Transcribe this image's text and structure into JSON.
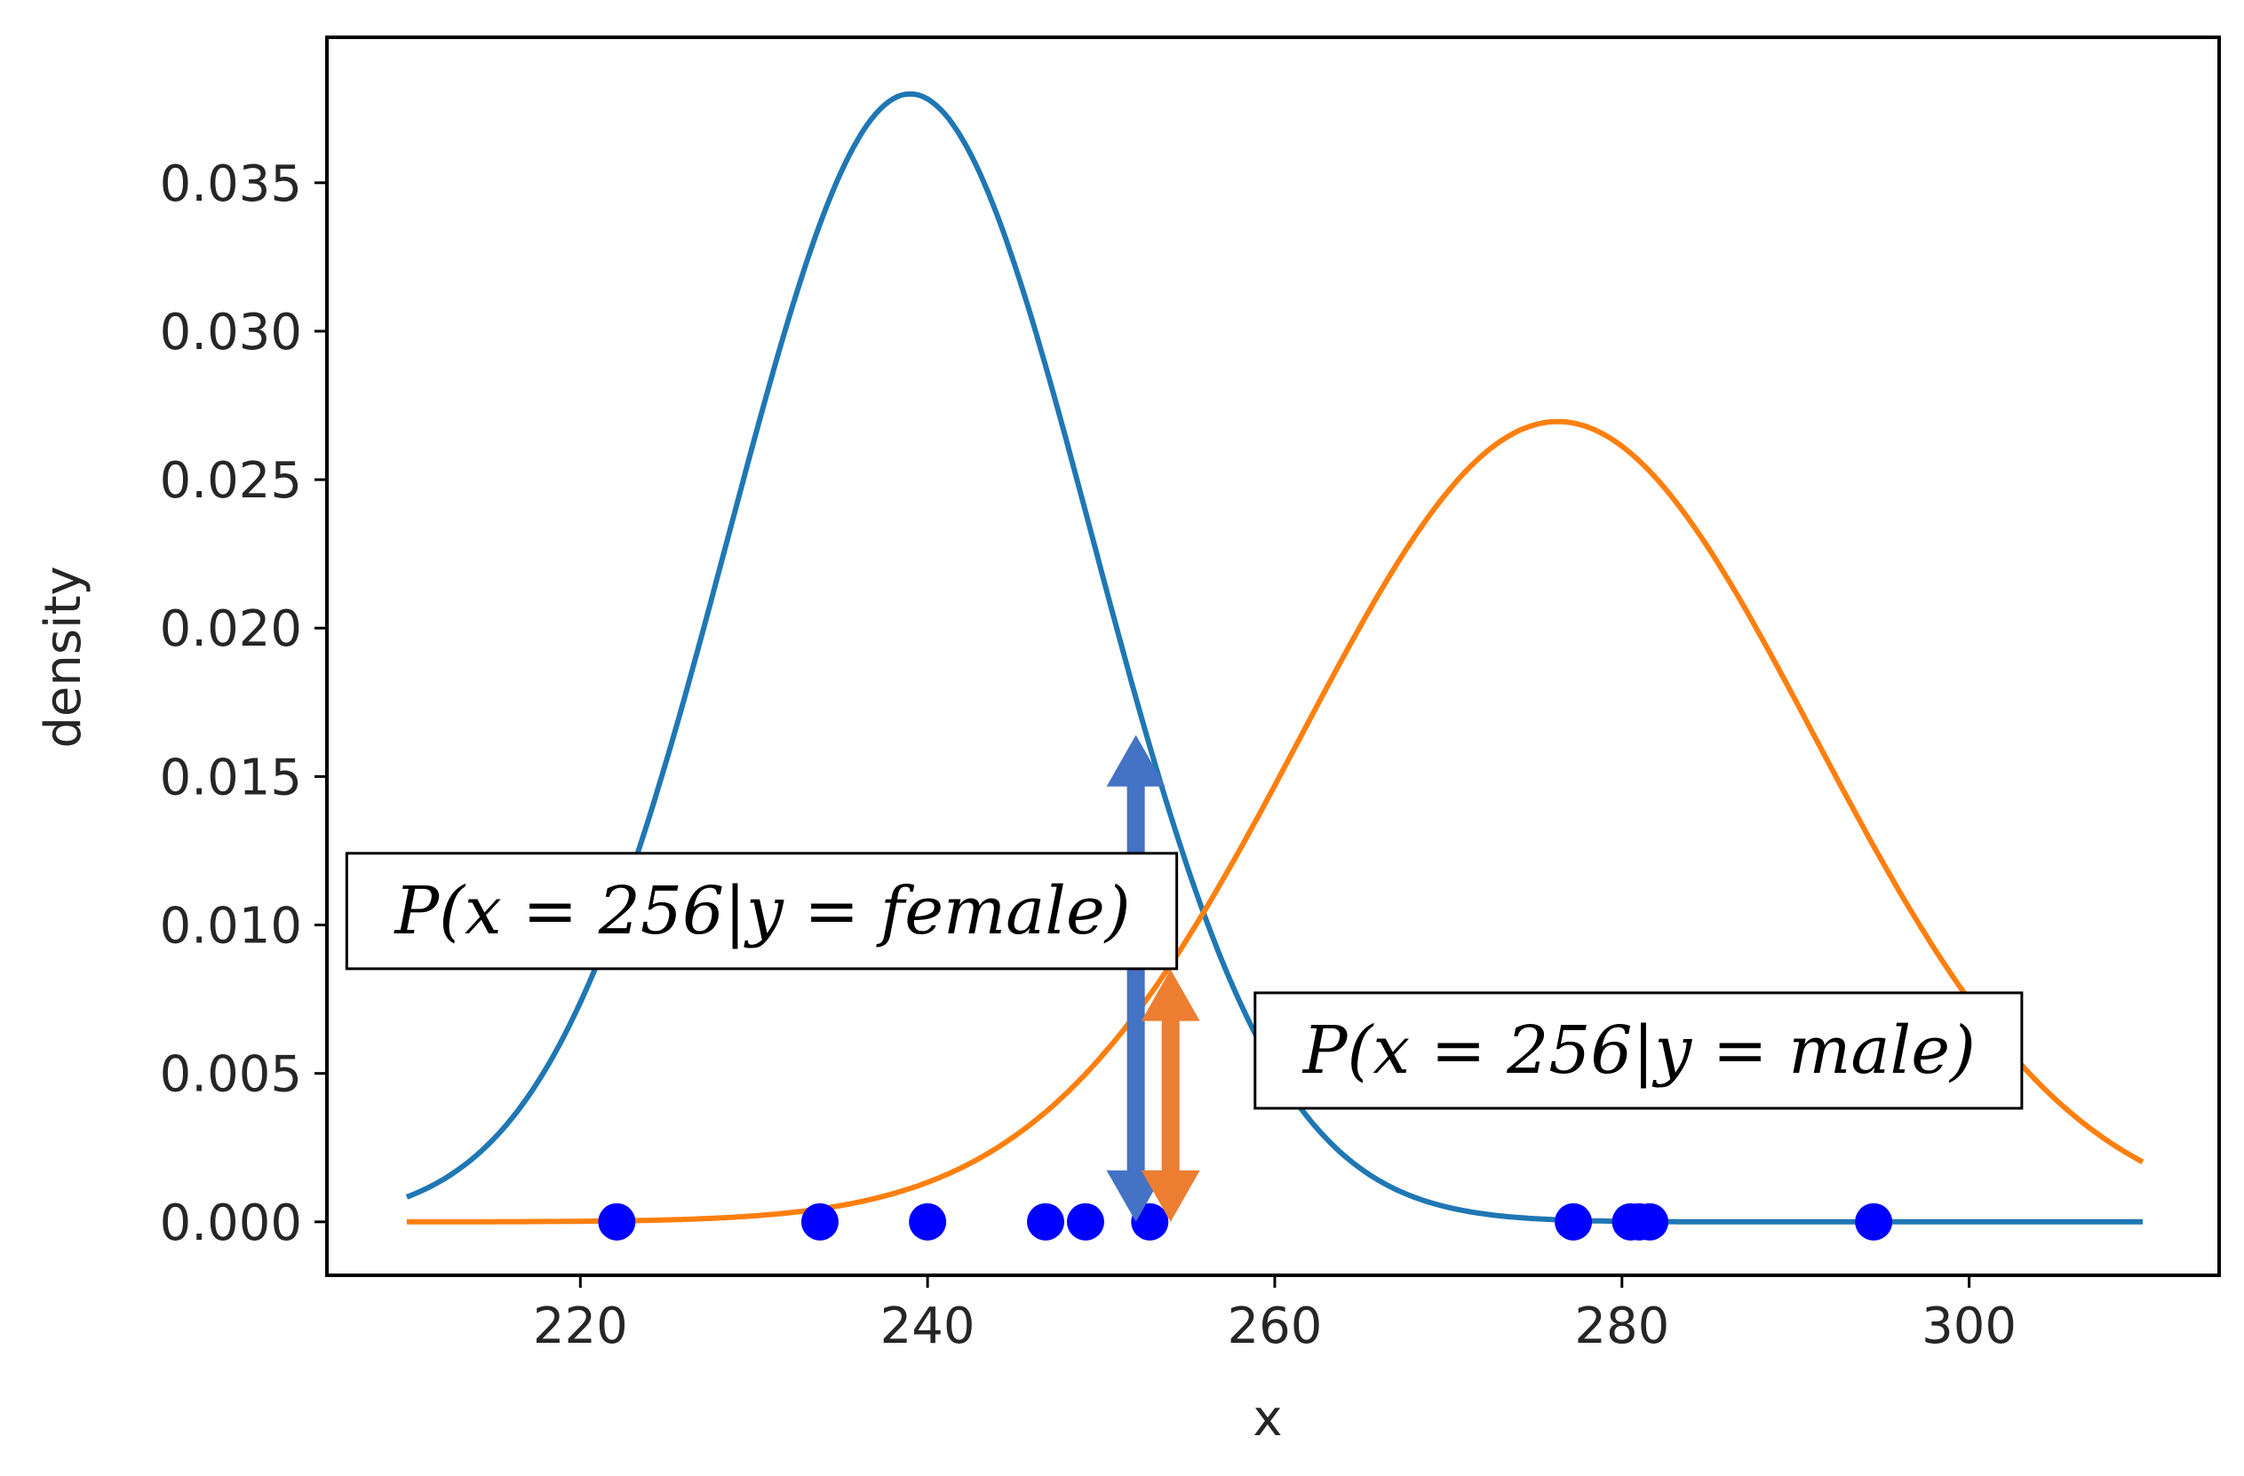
{
  "chart_data": {
    "type": "line",
    "title": "",
    "xlabel": "x",
    "ylabel": "density",
    "xlim": [
      205.4,
      314.4
    ],
    "ylim": [
      -0.0018,
      0.0399
    ],
    "xticks": [
      220,
      240,
      260,
      280,
      300
    ],
    "xtick_labels": [
      "220",
      "240",
      "260",
      "280",
      "300"
    ],
    "yticks": [
      0.0,
      0.005,
      0.01,
      0.015,
      0.02,
      0.025,
      0.03,
      0.035
    ],
    "ytick_labels": [
      "0.000",
      "0.005",
      "0.010",
      "0.015",
      "0.020",
      "0.025",
      "0.030",
      "0.035"
    ],
    "grid": false,
    "x_range": [
      210,
      310
    ],
    "series": [
      {
        "color": "#1f77b4",
        "distribution": "normal",
        "mean": 239,
        "sd": 10.5
      },
      {
        "color": "#ff7f0e",
        "distribution": "normal",
        "mean": 276.3,
        "sd": 14.8
      }
    ],
    "points": {
      "color": "#0000ff",
      "y": 0.0,
      "x": [
        222.1,
        233.8,
        240.0,
        246.8,
        249.1,
        252.8,
        277.2,
        280.5,
        281.0,
        281.6,
        294.5
      ]
    },
    "arrows": [
      {
        "color": "#4472c4",
        "x": 252.0,
        "y_from": 0.0,
        "y_to": 0.0164
      },
      {
        "color": "#ed7d31",
        "x": 254.0,
        "y_from": 0.0,
        "y_to": 0.0085
      }
    ],
    "annotations": [
      {
        "text": "P(x = 256|y = female)",
        "x": 230.5,
        "y": 0.0105
      },
      {
        "text": "P(x = 256|y = male)",
        "x": 281.0,
        "y": 0.0058
      }
    ]
  }
}
